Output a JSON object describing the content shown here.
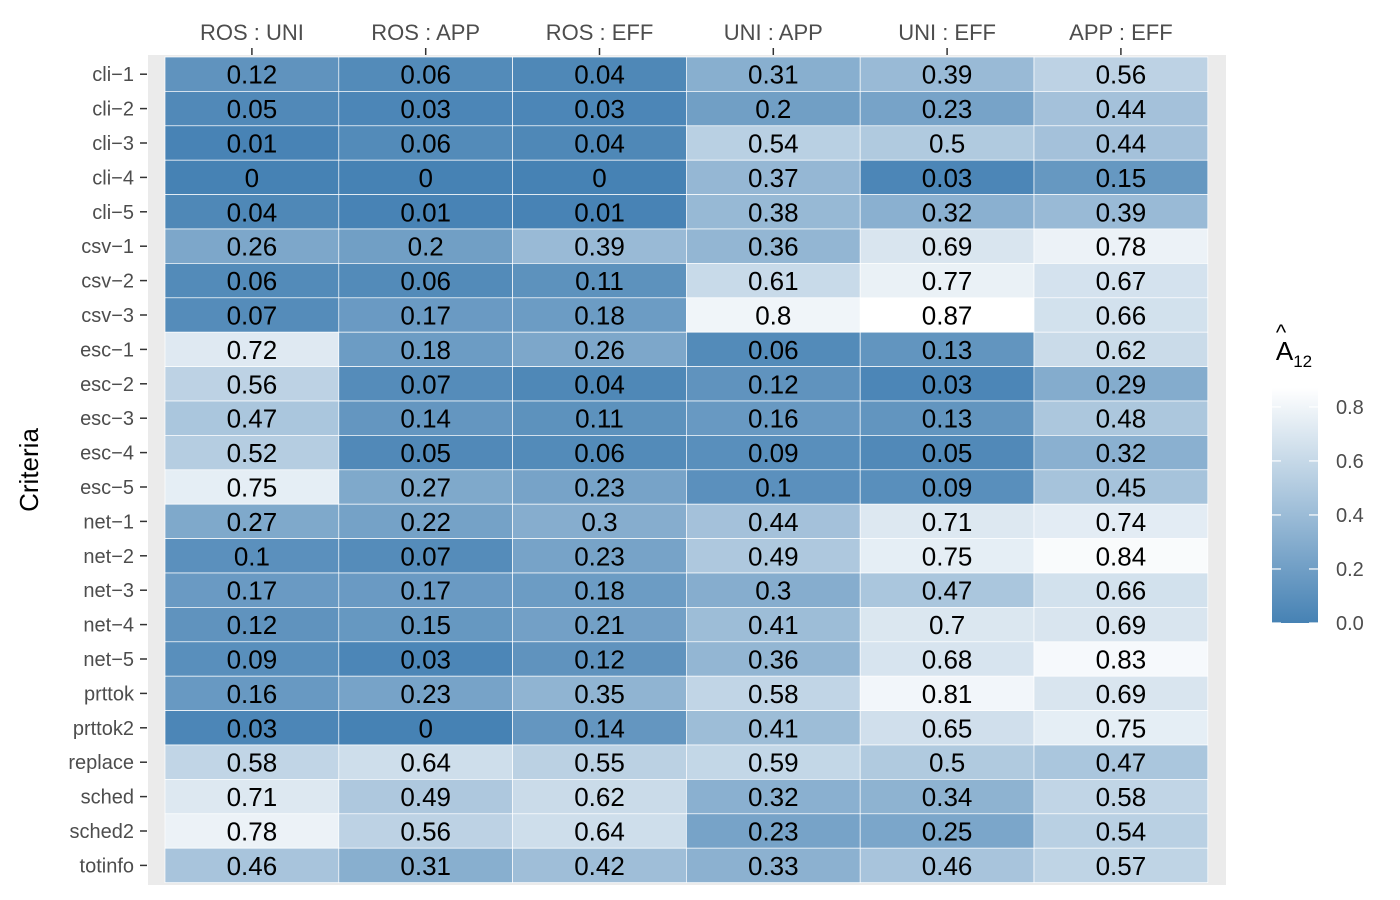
{
  "chart_data": {
    "type": "heatmap",
    "title": "",
    "xlabel": "",
    "ylabel": "Criteria",
    "x_axis_position": "top",
    "columns": [
      "ROS : UNI",
      "ROS : APP",
      "ROS : EFF",
      "UNI : APP",
      "UNI : EFF",
      "APP : EFF"
    ],
    "rows": [
      "cli−1",
      "cli−2",
      "cli−3",
      "cli−4",
      "cli−5",
      "csv−1",
      "csv−2",
      "csv−3",
      "esc−1",
      "esc−2",
      "esc−3",
      "esc−4",
      "esc−5",
      "net−1",
      "net−2",
      "net−3",
      "net−4",
      "net−5",
      "prttok",
      "prttok2",
      "replace",
      "sched",
      "sched2",
      "totinfo"
    ],
    "values": [
      [
        0.12,
        0.06,
        0.04,
        0.31,
        0.39,
        0.56
      ],
      [
        0.05,
        0.03,
        0.03,
        0.2,
        0.23,
        0.44
      ],
      [
        0.01,
        0.06,
        0.04,
        0.54,
        0.5,
        0.44
      ],
      [
        0,
        0,
        0,
        0.37,
        0.03,
        0.15
      ],
      [
        0.04,
        0.01,
        0.01,
        0.38,
        0.32,
        0.39
      ],
      [
        0.26,
        0.2,
        0.39,
        0.36,
        0.69,
        0.78
      ],
      [
        0.06,
        0.06,
        0.11,
        0.61,
        0.77,
        0.67
      ],
      [
        0.07,
        0.17,
        0.18,
        0.8,
        0.87,
        0.66
      ],
      [
        0.72,
        0.18,
        0.26,
        0.06,
        0.13,
        0.62
      ],
      [
        0.56,
        0.07,
        0.04,
        0.12,
        0.03,
        0.29
      ],
      [
        0.47,
        0.14,
        0.11,
        0.16,
        0.13,
        0.48
      ],
      [
        0.52,
        0.05,
        0.06,
        0.09,
        0.05,
        0.32
      ],
      [
        0.75,
        0.27,
        0.23,
        0.1,
        0.09,
        0.45
      ],
      [
        0.27,
        0.22,
        0.3,
        0.44,
        0.71,
        0.74
      ],
      [
        0.1,
        0.07,
        0.23,
        0.49,
        0.75,
        0.84
      ],
      [
        0.17,
        0.17,
        0.18,
        0.3,
        0.47,
        0.66
      ],
      [
        0.12,
        0.15,
        0.21,
        0.41,
        0.7,
        0.69
      ],
      [
        0.09,
        0.03,
        0.12,
        0.36,
        0.68,
        0.83
      ],
      [
        0.16,
        0.23,
        0.35,
        0.58,
        0.81,
        0.69
      ],
      [
        0.03,
        0,
        0.14,
        0.41,
        0.65,
        0.75
      ],
      [
        0.58,
        0.64,
        0.55,
        0.59,
        0.5,
        0.47
      ],
      [
        0.71,
        0.49,
        0.62,
        0.32,
        0.34,
        0.58
      ],
      [
        0.78,
        0.56,
        0.64,
        0.23,
        0.25,
        0.54
      ],
      [
        0.46,
        0.31,
        0.42,
        0.33,
        0.46,
        0.57
      ]
    ],
    "legend": {
      "title_base": "A",
      "title_hat": "^",
      "title_subscript": "12",
      "ticks": [
        0.0,
        0.2,
        0.4,
        0.6,
        0.8
      ],
      "tick_labels": [
        "0.0",
        "0.2",
        "0.4",
        "0.6",
        "0.8"
      ],
      "range": [
        0,
        0.87
      ],
      "placement": "right"
    },
    "color_low": "#4682b4",
    "color_high": "#ffffff",
    "panel_background": "#ebebeb"
  }
}
